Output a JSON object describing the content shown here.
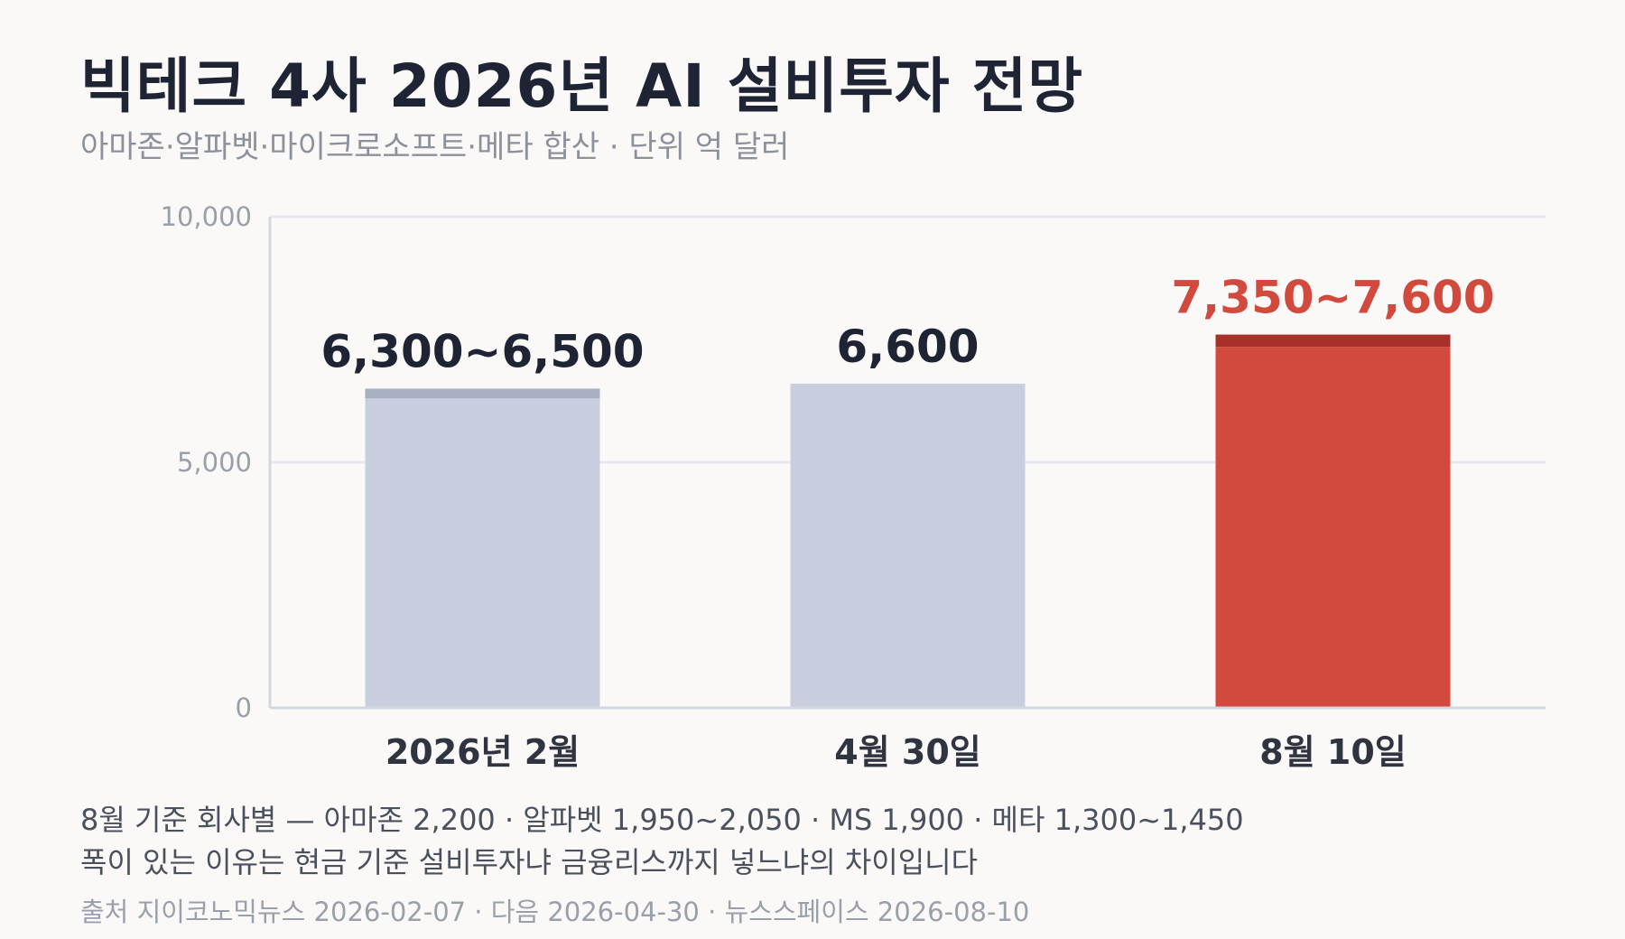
{
  "header": {
    "title": "빅테크 4사 2026년 AI 설비투자 전망",
    "subtitle": "아마존·알파벳·마이크로소프트·메타 합산 · 단위 억 달러"
  },
  "chart_data": {
    "type": "bar",
    "title": "빅테크 4사 2026년 AI 설비투자 전망",
    "unit": "억 달러",
    "ylim": [
      0,
      10000
    ],
    "yticks": [
      0,
      5000,
      10000
    ],
    "ytick_labels": [
      "0",
      "5,000",
      "10,000"
    ],
    "grid": true,
    "categories": [
      "2026년 2월",
      "4월 30일",
      "8월 10일"
    ],
    "series": [
      {
        "low": [
          6300,
          6600,
          7350
        ],
        "high": [
          6500,
          6600,
          7600
        ],
        "labels": [
          "6,300~6,500",
          "6,600",
          "7,350~7,600"
        ],
        "highlight": [
          false,
          false,
          true
        ]
      }
    ]
  },
  "colors": {
    "bar": "#c8cedd",
    "bar_range": "#a7b0c2",
    "highlight": "#d24a3d",
    "highlight_range": "#a8302a",
    "grid": "#e8e9ef",
    "axis": "#d4d7e0",
    "tick_text": "#9aa0aa",
    "label_text": "#1e2433",
    "category_text": "#2f3440"
  },
  "footer": {
    "note_line1": "8월 기준 회사별 — 아마존 2,200 · 알파벳 1,950~2,050 · MS 1,900 · 메타 1,300~1,450",
    "note_line2": "폭이 있는 이유는 현금 기준 설비투자냐 금융리스까지 넣느냐의 차이입니다",
    "source": "출처 지이코노믹뉴스 2026-02-07 · 다음 2026-04-30 · 뉴스스페이스 2026-08-10"
  }
}
